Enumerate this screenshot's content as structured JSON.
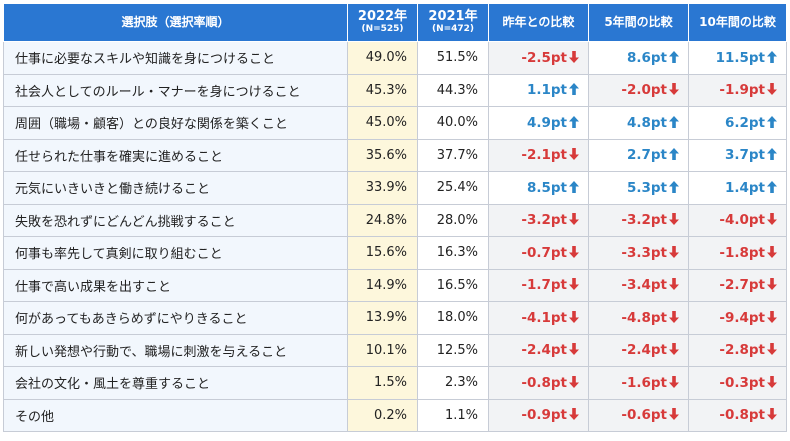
{
  "header": {
    "label": "選択肢（選択率順）",
    "year_2022": "2022年",
    "n_2022": "(N=525)",
    "year_2021": "2021年",
    "n_2021": "(N=472)",
    "col_prev": "昨年との比較",
    "col_5y": "5年間の比較",
    "col_10y": "10年間の比較"
  },
  "colors": {
    "header_bg": "#2a77d2",
    "up": "#2b86c7",
    "down": "#d73a3a",
    "highlight_2022": "#fdf7dc"
  },
  "rows": [
    {
      "label": "仕事に必要なスキルや知識を身につけること",
      "v2022": "49.0%",
      "v2021": "51.5%",
      "prev": "-2.5pt",
      "prev_dir": "down",
      "y5": "8.6pt",
      "y5_dir": "up",
      "y10": "11.5pt",
      "y10_dir": "up"
    },
    {
      "label": "社会人としてのルール・マナーを身につけること",
      "v2022": "45.3%",
      "v2021": "44.3%",
      "prev": "1.1pt",
      "prev_dir": "up",
      "y5": "-2.0pt",
      "y5_dir": "down",
      "y10": "-1.9pt",
      "y10_dir": "down"
    },
    {
      "label": "周囲（職場・顧客）との良好な関係を築くこと",
      "v2022": "45.0%",
      "v2021": "40.0%",
      "prev": "4.9pt",
      "prev_dir": "up",
      "y5": "4.8pt",
      "y5_dir": "up",
      "y10": "6.2pt",
      "y10_dir": "up"
    },
    {
      "label": "任せられた仕事を確実に進めること",
      "v2022": "35.6%",
      "v2021": "37.7%",
      "prev": "-2.1pt",
      "prev_dir": "down",
      "y5": "2.7pt",
      "y5_dir": "up",
      "y10": "3.7pt",
      "y10_dir": "up"
    },
    {
      "label": "元気にいきいきと働き続けること",
      "v2022": "33.9%",
      "v2021": "25.4%",
      "prev": "8.5pt",
      "prev_dir": "up",
      "y5": "5.3pt",
      "y5_dir": "up",
      "y10": "1.4pt",
      "y10_dir": "up"
    },
    {
      "label": "失敗を恐れずにどんどん挑戦すること",
      "v2022": "24.8%",
      "v2021": "28.0%",
      "prev": "-3.2pt",
      "prev_dir": "down",
      "y5": "-3.2pt",
      "y5_dir": "down",
      "y10": "-4.0pt",
      "y10_dir": "down"
    },
    {
      "label": "何事も率先して真剣に取り組むこと",
      "v2022": "15.6%",
      "v2021": "16.3%",
      "prev": "-0.7pt",
      "prev_dir": "down",
      "y5": "-3.3pt",
      "y5_dir": "down",
      "y10": "-1.8pt",
      "y10_dir": "down"
    },
    {
      "label": "仕事で高い成果を出すこと",
      "v2022": "14.9%",
      "v2021": "16.5%",
      "prev": "-1.7pt",
      "prev_dir": "down",
      "y5": "-3.4pt",
      "y5_dir": "down",
      "y10": "-2.7pt",
      "y10_dir": "down"
    },
    {
      "label": "何があってもあきらめずにやりきること",
      "v2022": "13.9%",
      "v2021": "18.0%",
      "prev": "-4.1pt",
      "prev_dir": "down",
      "y5": "-4.8pt",
      "y5_dir": "down",
      "y10": "-9.4pt",
      "y10_dir": "down"
    },
    {
      "label": "新しい発想や行動で、職場に刺激を与えること",
      "v2022": "10.1%",
      "v2021": "12.5%",
      "prev": "-2.4pt",
      "prev_dir": "down",
      "y5": "-2.4pt",
      "y5_dir": "down",
      "y10": "-2.8pt",
      "y10_dir": "down"
    },
    {
      "label": "会社の文化・風土を尊重すること",
      "v2022": "1.5%",
      "v2021": "2.3%",
      "prev": "-0.8pt",
      "prev_dir": "down",
      "y5": "-1.6pt",
      "y5_dir": "down",
      "y10": "-0.3pt",
      "y10_dir": "down"
    },
    {
      "label": "その他",
      "v2022": "0.2%",
      "v2021": "1.1%",
      "prev": "-0.9pt",
      "prev_dir": "down",
      "y5": "-0.6pt",
      "y5_dir": "down",
      "y10": "-0.8pt",
      "y10_dir": "down"
    }
  ]
}
